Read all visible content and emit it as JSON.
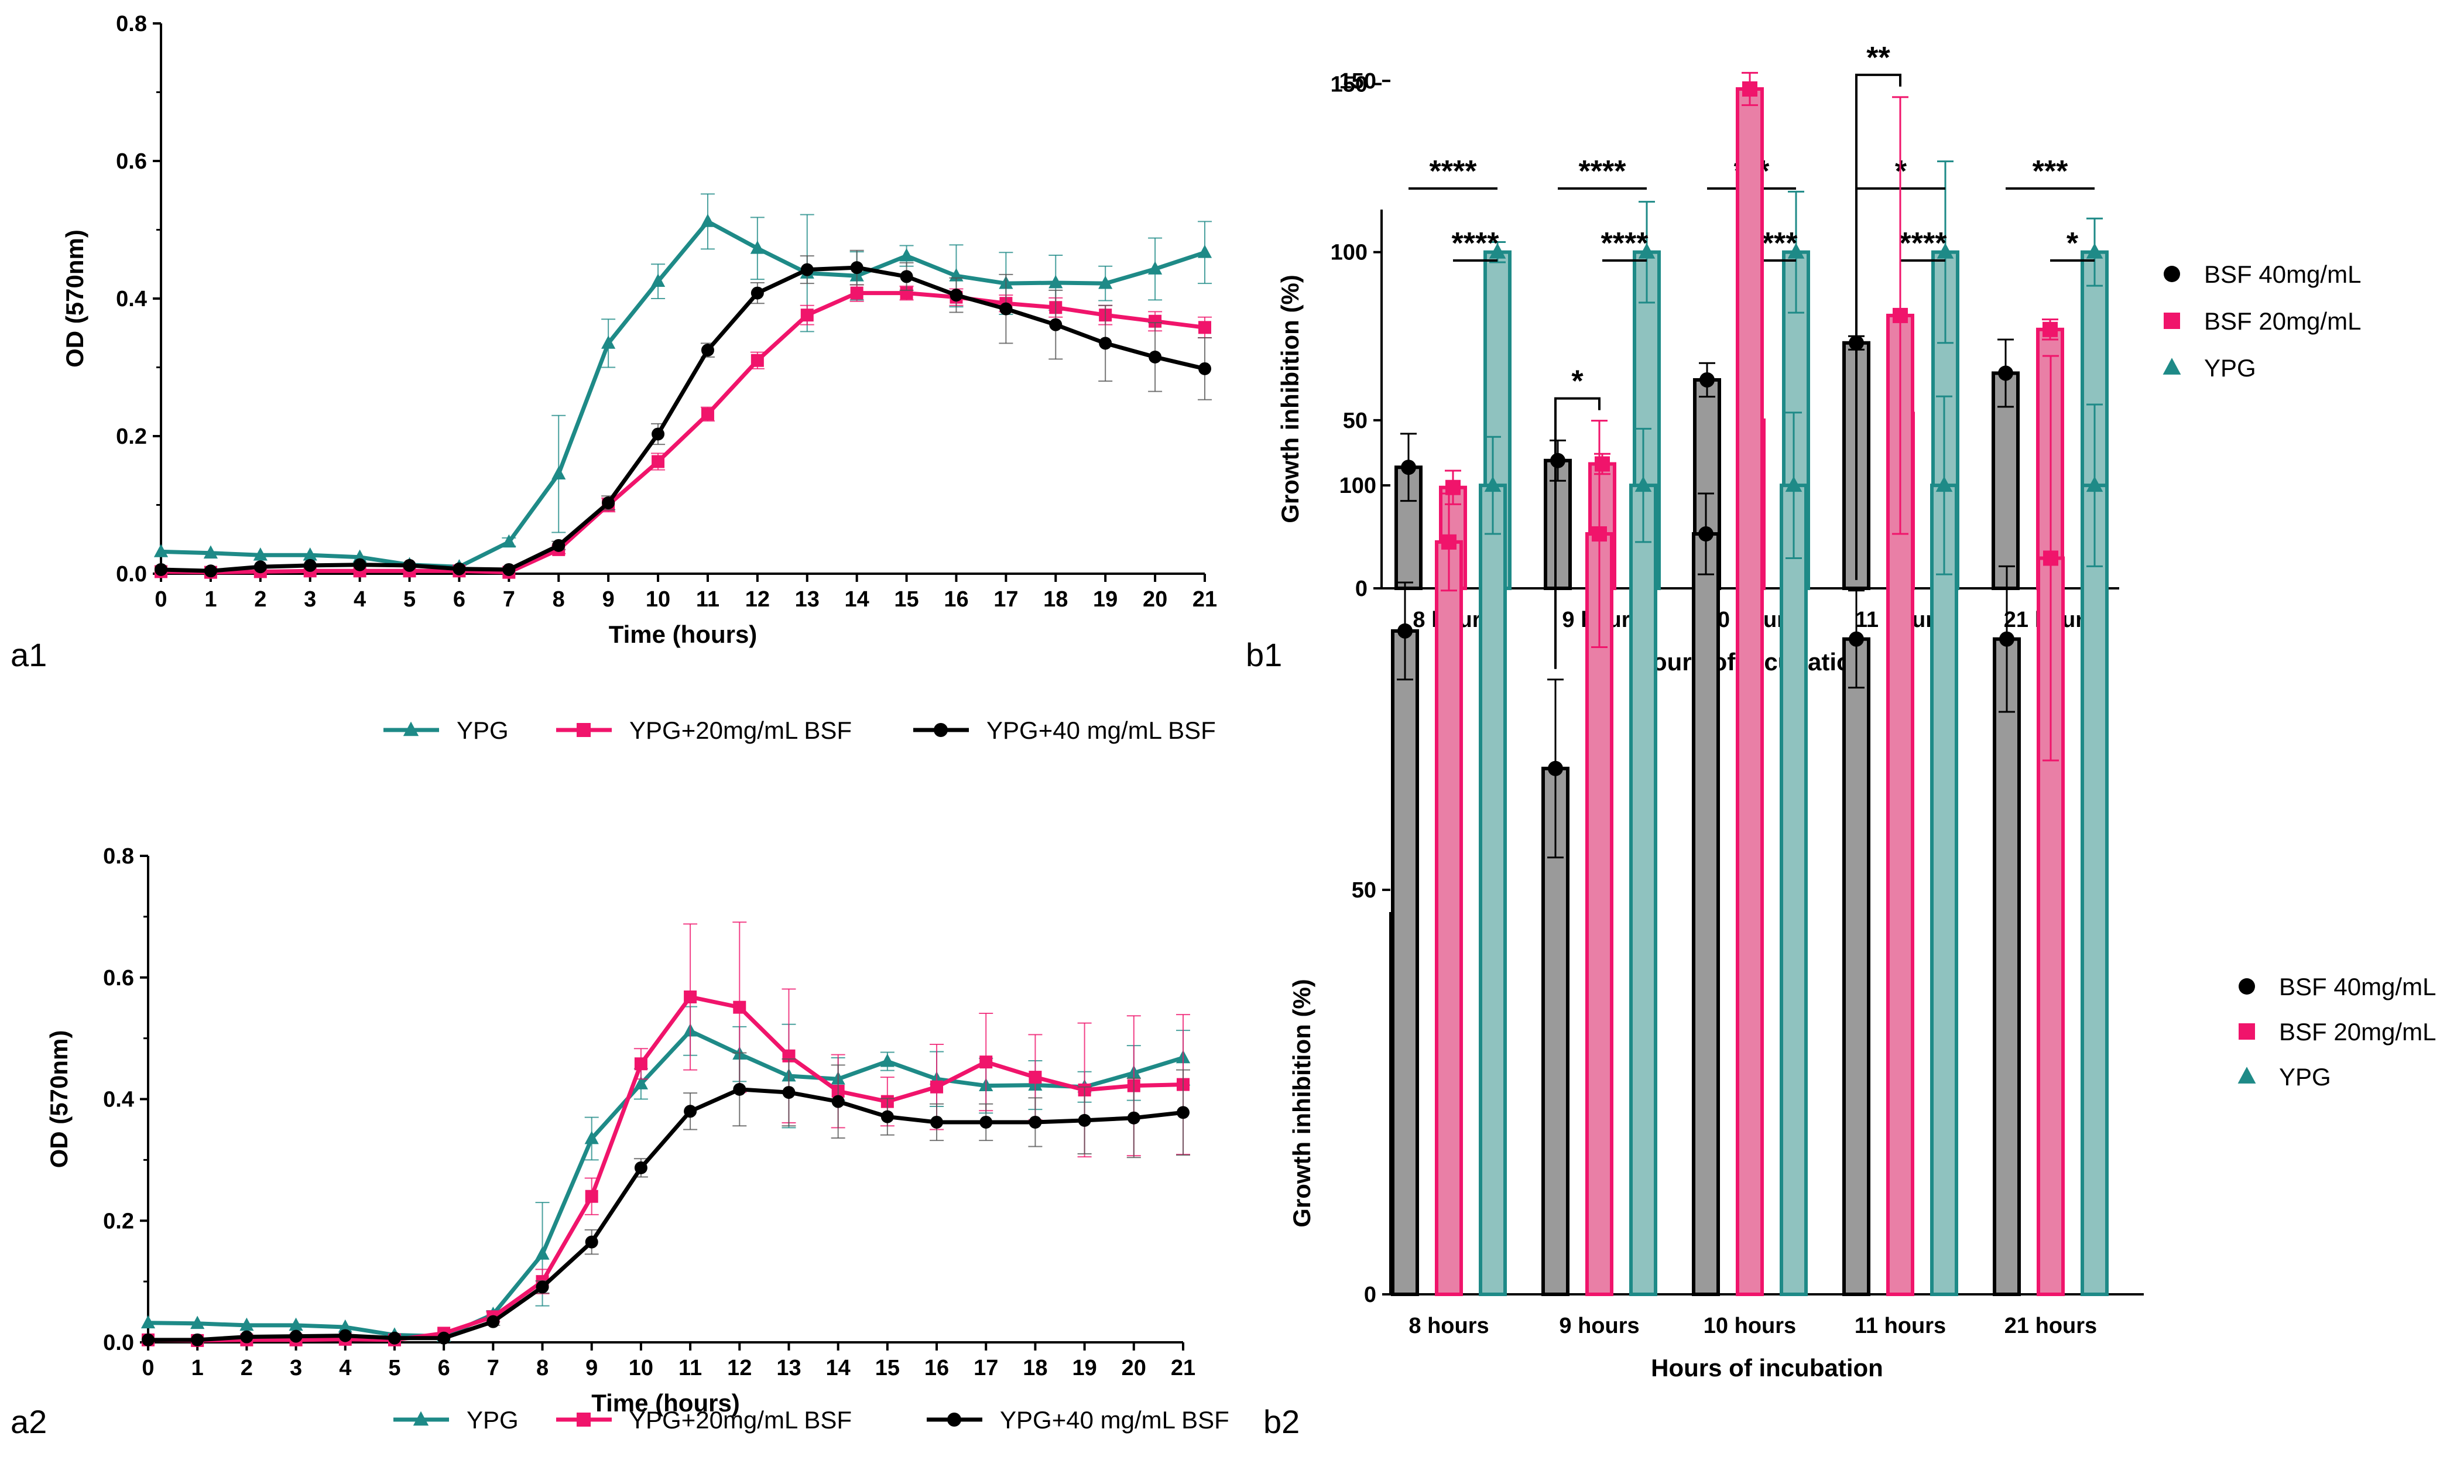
{
  "colors": {
    "ypg": "#1e8a87",
    "bsf20": "#f0146b",
    "bsf40": "#000000",
    "bar40": "#9a9a9a",
    "bar20": "#e97fa6",
    "barYPG": "#8fc2bf"
  },
  "panels": {
    "a1": "a1",
    "b1": "b1",
    "a2": "a2",
    "b2": "b2"
  },
  "chart_data": [
    {
      "id": "a1",
      "type": "line",
      "xlabel": "Time (hours)",
      "ylabel": "OD (570nm)",
      "xlim": [
        0,
        21
      ],
      "ylim": [
        0,
        0.8
      ],
      "x": [
        0,
        1,
        2,
        3,
        4,
        5,
        6,
        7,
        8,
        9,
        10,
        11,
        12,
        13,
        14,
        15,
        16,
        17,
        18,
        19,
        20,
        21
      ],
      "yticks": [
        "0.0",
        "0.2",
        "0.4",
        "0.6",
        "0.8"
      ],
      "series": [
        {
          "name": "YPG",
          "marker": "triangle",
          "color": "#1e8a87",
          "values": [
            0.032,
            0.03,
            0.027,
            0.027,
            0.024,
            0.013,
            0.01,
            0.046,
            0.145,
            0.335,
            0.425,
            0.512,
            0.473,
            0.437,
            0.433,
            0.462,
            0.433,
            0.422,
            0.423,
            0.422,
            0.443,
            0.467
          ],
          "errors": [
            0.004,
            0.004,
            0.004,
            0.004,
            0.004,
            0.004,
            0.004,
            0.006,
            0.085,
            0.035,
            0.025,
            0.04,
            0.045,
            0.085,
            0.035,
            0.015,
            0.045,
            0.045,
            0.04,
            0.025,
            0.045,
            0.045
          ]
        },
        {
          "name": "YPG+20mg/mL BSF",
          "marker": "square",
          "color": "#f0146b",
          "values": [
            0.003,
            0.002,
            0.003,
            0.004,
            0.004,
            0.004,
            0.004,
            0.002,
            0.035,
            0.1,
            0.163,
            0.232,
            0.31,
            0.376,
            0.408,
            0.408,
            0.402,
            0.393,
            0.387,
            0.376,
            0.367,
            0.358
          ],
          "errors": [
            0.003,
            0.003,
            0.003,
            0.003,
            0.003,
            0.003,
            0.003,
            0.003,
            0.006,
            0.01,
            0.012,
            0.01,
            0.012,
            0.014,
            0.012,
            0.01,
            0.012,
            0.012,
            0.014,
            0.014,
            0.014,
            0.015
          ]
        },
        {
          "name": "YPG+40 mg/mL BSF",
          "marker": "circle",
          "color": "#000000",
          "values": [
            0.006,
            0.004,
            0.01,
            0.012,
            0.013,
            0.012,
            0.007,
            0.006,
            0.041,
            0.103,
            0.203,
            0.325,
            0.408,
            0.442,
            0.445,
            0.432,
            0.405,
            0.385,
            0.362,
            0.335,
            0.315,
            0.298
          ],
          "errors": [
            0.003,
            0.003,
            0.003,
            0.003,
            0.003,
            0.003,
            0.003,
            0.003,
            0.006,
            0.01,
            0.015,
            0.01,
            0.015,
            0.02,
            0.025,
            0.02,
            0.025,
            0.05,
            0.05,
            0.055,
            0.05,
            0.045
          ]
        }
      ],
      "legend": [
        "YPG",
        "YPG+20mg/mL BSF",
        "YPG+40 mg/mL BSF"
      ]
    },
    {
      "id": "b1",
      "type": "bar",
      "xlabel": "Hours of incubation",
      "ylabel": "Growth inhibition (%)",
      "ylim": [
        0,
        175
      ],
      "yticks": [
        "0",
        "50",
        "100",
        "150"
      ],
      "categories": [
        "8 hours",
        "9 hours",
        "10 hours",
        "11 hours",
        "21 hours"
      ],
      "series": [
        {
          "name": "BSF 40mg/mL",
          "values": [
            36,
            38,
            62,
            73,
            64
          ],
          "errors": [
            10,
            6,
            5,
            2,
            10
          ]
        },
        {
          "name": "BSF 20mg/mL",
          "values": [
            30,
            37,
            50,
            52,
            77
          ],
          "errors": [
            5,
            3,
            3,
            3,
            3
          ]
        },
        {
          "name": "YPG",
          "values": [
            100,
            100,
            100,
            100,
            100
          ],
          "errors": [
            3,
            15,
            18,
            27,
            10
          ]
        }
      ],
      "significance": [
        {
          "category": 0,
          "from": 0,
          "to": 2,
          "label": "****"
        },
        {
          "category": 0,
          "from": 1,
          "to": 2,
          "label": "****"
        },
        {
          "category": 1,
          "from": 0,
          "to": 2,
          "label": "****"
        },
        {
          "category": 1,
          "from": 1,
          "to": 2,
          "label": "****"
        },
        {
          "category": 2,
          "from": 0,
          "to": 2,
          "label": "***"
        },
        {
          "category": 2,
          "from": 1,
          "to": 2,
          "label": "****"
        },
        {
          "category": 3,
          "from": 0,
          "to": 2,
          "label": "*"
        },
        {
          "category": 3,
          "from": 1,
          "to": 2,
          "label": "****"
        },
        {
          "category": 4,
          "from": 0,
          "to": 2,
          "label": "***"
        },
        {
          "category": 4,
          "from": 1,
          "to": 2,
          "label": "*"
        }
      ],
      "legend": [
        "BSF 40mg/mL",
        "BSF 20mg/mL",
        "YPG"
      ]
    },
    {
      "id": "a2",
      "type": "line",
      "xlabel": "Time (hours)",
      "ylabel": "OD (570nm)",
      "xlim": [
        0,
        21
      ],
      "ylim": [
        0,
        0.8
      ],
      "x": [
        0,
        1,
        2,
        3,
        4,
        5,
        6,
        7,
        8,
        9,
        10,
        11,
        12,
        13,
        14,
        15,
        16,
        17,
        18,
        19,
        20,
        21
      ],
      "yticks": [
        "0.0",
        "0.2",
        "0.4",
        "0.6",
        "0.8"
      ],
      "series": [
        {
          "name": "YPG",
          "marker": "triangle",
          "color": "#1e8a87",
          "values": [
            0.032,
            0.031,
            0.028,
            0.028,
            0.025,
            0.012,
            0.01,
            0.046,
            0.145,
            0.335,
            0.425,
            0.512,
            0.474,
            0.438,
            0.433,
            0.462,
            0.433,
            0.422,
            0.423,
            0.42,
            0.443,
            0.468
          ],
          "errors": [
            0.004,
            0.004,
            0.004,
            0.004,
            0.004,
            0.004,
            0.004,
            0.006,
            0.085,
            0.035,
            0.025,
            0.04,
            0.045,
            0.085,
            0.035,
            0.015,
            0.045,
            0.045,
            0.04,
            0.025,
            0.045,
            0.045
          ]
        },
        {
          "name": "YPG+20mg/mL BSF",
          "marker": "square",
          "color": "#f0146b",
          "values": [
            0.004,
            0.003,
            0.004,
            0.004,
            0.005,
            0.004,
            0.015,
            0.042,
            0.1,
            0.24,
            0.458,
            0.568,
            0.551,
            0.471,
            0.413,
            0.396,
            0.42,
            0.461,
            0.436,
            0.415,
            0.422,
            0.424
          ],
          "errors": [
            0.003,
            0.003,
            0.003,
            0.003,
            0.003,
            0.003,
            0.005,
            0.008,
            0.02,
            0.03,
            0.025,
            0.12,
            0.14,
            0.11,
            0.06,
            0.04,
            0.07,
            0.08,
            0.07,
            0.11,
            0.115,
            0.115
          ]
        },
        {
          "name": "YPG+40 mg/mL BSF",
          "marker": "circle",
          "color": "#000000",
          "values": [
            0.004,
            0.004,
            0.009,
            0.01,
            0.011,
            0.007,
            0.007,
            0.034,
            0.091,
            0.165,
            0.287,
            0.38,
            0.416,
            0.411,
            0.396,
            0.371,
            0.362,
            0.362,
            0.362,
            0.365,
            0.369,
            0.378
          ],
          "errors": [
            0.003,
            0.003,
            0.003,
            0.003,
            0.003,
            0.003,
            0.003,
            0.006,
            0.01,
            0.02,
            0.015,
            0.03,
            0.06,
            0.055,
            0.06,
            0.03,
            0.03,
            0.03,
            0.04,
            0.055,
            0.065,
            0.07
          ]
        }
      ],
      "legend": [
        "YPG",
        "YPG+20mg/mL BSF",
        "YPG+40 mg/mL BSF"
      ]
    },
    {
      "id": "b2",
      "type": "bar",
      "xlabel": "Hours of incubation",
      "ylabel": "Growth inhibition (%)",
      "ylim": [
        0,
        160
      ],
      "yticks": [
        "0",
        "50",
        "100",
        "150"
      ],
      "categories": [
        "8 hours",
        "9 hours",
        "10 hours",
        "11 hours",
        "21 hours"
      ],
      "series": [
        {
          "name": "BSF 40mg/mL",
          "values": [
            82,
            65,
            94,
            81,
            81
          ],
          "errors": [
            6,
            11,
            5,
            6,
            9
          ]
        },
        {
          "name": "BSF 20mg/mL",
          "values": [
            93,
            94,
            149,
            121,
            91
          ],
          "errors": [
            6,
            14,
            2,
            27,
            25
          ]
        },
        {
          "name": "YPG",
          "values": [
            100,
            100,
            100,
            100,
            100
          ],
          "errors": [
            6,
            7,
            9,
            11,
            10
          ]
        }
      ],
      "significance": [
        {
          "category": 1,
          "from": 0,
          "to": 1,
          "label": "*"
        },
        {
          "category": 3,
          "from": 0,
          "to": 1,
          "label": "**"
        }
      ],
      "legend": [
        "BSF 40mg/mL",
        "BSF 20mg/mL",
        "YPG"
      ]
    }
  ]
}
